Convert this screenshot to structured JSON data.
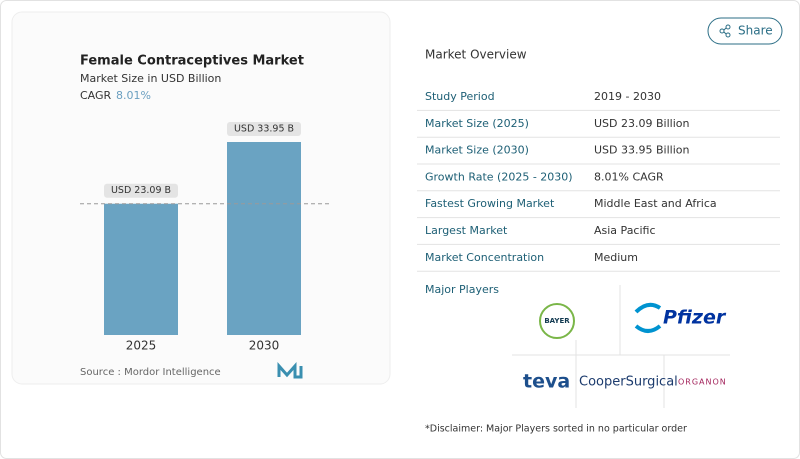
{
  "share": "Share",
  "chart_data": {
    "type": "bar",
    "title": "Female Contraceptives Market",
    "subtitle": "Market Size in USD Billion",
    "cagr_label": "CAGR",
    "cagr_value": "8.01%",
    "categories": [
      "2025",
      "2030"
    ],
    "values": [
      23.09,
      33.95
    ],
    "value_labels": [
      "USD 23.09 B",
      "USD 33.95 B"
    ],
    "color": "#6aa3c2",
    "source": "Source :  Mordor Intelligence"
  },
  "overview": {
    "title": "Market Overview",
    "rows": [
      [
        "Study Period",
        "2019 - 2030"
      ],
      [
        "Market Size (2025)",
        "USD 23.09 Billion"
      ],
      [
        "Market Size (2030)",
        "USD 33.95 Billion"
      ],
      [
        "Growth Rate (2025 - 2030)",
        "8.01% CAGR"
      ],
      [
        "Fastest Growing Market",
        "Middle East and Africa"
      ],
      [
        "Largest Market",
        "Asia Pacific"
      ],
      [
        "Market Concentration",
        "Medium"
      ]
    ]
  },
  "players": {
    "title": "Major Players",
    "logos": [
      "BAYER",
      "Pfizer",
      "teva",
      "CooperSurgical",
      "ORGANON"
    ]
  },
  "disclaimer": "*Disclaimer: Major Players sorted in no particular order"
}
